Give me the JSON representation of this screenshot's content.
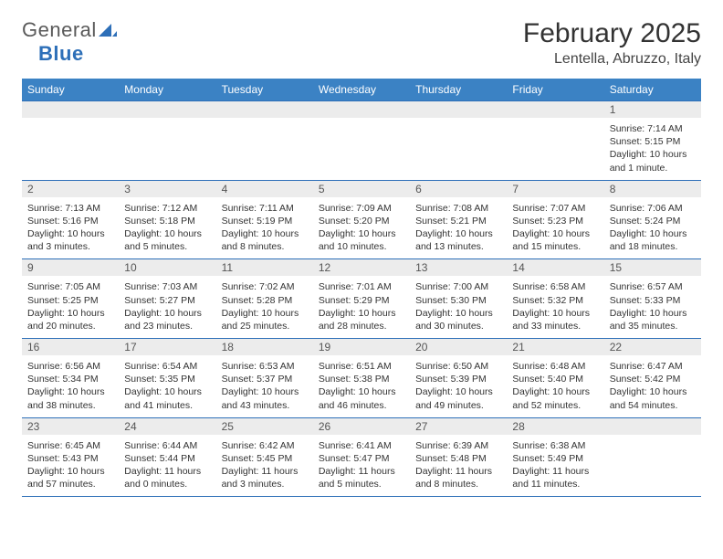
{
  "logo": {
    "part1": "General",
    "part2": "Blue"
  },
  "title": "February 2025",
  "location": "Lentella, Abruzzo, Italy",
  "colors": {
    "header_bg": "#3b82c4",
    "header_text": "#ffffff",
    "border": "#2d6fb8",
    "daynum_bg": "#ececec",
    "daynum_text": "#555555",
    "body_text": "#333333",
    "logo_gray": "#5a5a5a",
    "logo_blue": "#2d6fb8",
    "page_bg": "#ffffff"
  },
  "fonts": {
    "title_size_pt": 22,
    "location_size_pt": 12,
    "dayheader_size_pt": 9,
    "daynum_size_pt": 9,
    "details_size_pt": 8
  },
  "day_headers": [
    "Sunday",
    "Monday",
    "Tuesday",
    "Wednesday",
    "Thursday",
    "Friday",
    "Saturday"
  ],
  "weeks": [
    [
      {
        "n": "",
        "sr": "",
        "ss": "",
        "dl": ""
      },
      {
        "n": "",
        "sr": "",
        "ss": "",
        "dl": ""
      },
      {
        "n": "",
        "sr": "",
        "ss": "",
        "dl": ""
      },
      {
        "n": "",
        "sr": "",
        "ss": "",
        "dl": ""
      },
      {
        "n": "",
        "sr": "",
        "ss": "",
        "dl": ""
      },
      {
        "n": "",
        "sr": "",
        "ss": "",
        "dl": ""
      },
      {
        "n": "1",
        "sr": "Sunrise: 7:14 AM",
        "ss": "Sunset: 5:15 PM",
        "dl": "Daylight: 10 hours and 1 minute."
      }
    ],
    [
      {
        "n": "2",
        "sr": "Sunrise: 7:13 AM",
        "ss": "Sunset: 5:16 PM",
        "dl": "Daylight: 10 hours and 3 minutes."
      },
      {
        "n": "3",
        "sr": "Sunrise: 7:12 AM",
        "ss": "Sunset: 5:18 PM",
        "dl": "Daylight: 10 hours and 5 minutes."
      },
      {
        "n": "4",
        "sr": "Sunrise: 7:11 AM",
        "ss": "Sunset: 5:19 PM",
        "dl": "Daylight: 10 hours and 8 minutes."
      },
      {
        "n": "5",
        "sr": "Sunrise: 7:09 AM",
        "ss": "Sunset: 5:20 PM",
        "dl": "Daylight: 10 hours and 10 minutes."
      },
      {
        "n": "6",
        "sr": "Sunrise: 7:08 AM",
        "ss": "Sunset: 5:21 PM",
        "dl": "Daylight: 10 hours and 13 minutes."
      },
      {
        "n": "7",
        "sr": "Sunrise: 7:07 AM",
        "ss": "Sunset: 5:23 PM",
        "dl": "Daylight: 10 hours and 15 minutes."
      },
      {
        "n": "8",
        "sr": "Sunrise: 7:06 AM",
        "ss": "Sunset: 5:24 PM",
        "dl": "Daylight: 10 hours and 18 minutes."
      }
    ],
    [
      {
        "n": "9",
        "sr": "Sunrise: 7:05 AM",
        "ss": "Sunset: 5:25 PM",
        "dl": "Daylight: 10 hours and 20 minutes."
      },
      {
        "n": "10",
        "sr": "Sunrise: 7:03 AM",
        "ss": "Sunset: 5:27 PM",
        "dl": "Daylight: 10 hours and 23 minutes."
      },
      {
        "n": "11",
        "sr": "Sunrise: 7:02 AM",
        "ss": "Sunset: 5:28 PM",
        "dl": "Daylight: 10 hours and 25 minutes."
      },
      {
        "n": "12",
        "sr": "Sunrise: 7:01 AM",
        "ss": "Sunset: 5:29 PM",
        "dl": "Daylight: 10 hours and 28 minutes."
      },
      {
        "n": "13",
        "sr": "Sunrise: 7:00 AM",
        "ss": "Sunset: 5:30 PM",
        "dl": "Daylight: 10 hours and 30 minutes."
      },
      {
        "n": "14",
        "sr": "Sunrise: 6:58 AM",
        "ss": "Sunset: 5:32 PM",
        "dl": "Daylight: 10 hours and 33 minutes."
      },
      {
        "n": "15",
        "sr": "Sunrise: 6:57 AM",
        "ss": "Sunset: 5:33 PM",
        "dl": "Daylight: 10 hours and 35 minutes."
      }
    ],
    [
      {
        "n": "16",
        "sr": "Sunrise: 6:56 AM",
        "ss": "Sunset: 5:34 PM",
        "dl": "Daylight: 10 hours and 38 minutes."
      },
      {
        "n": "17",
        "sr": "Sunrise: 6:54 AM",
        "ss": "Sunset: 5:35 PM",
        "dl": "Daylight: 10 hours and 41 minutes."
      },
      {
        "n": "18",
        "sr": "Sunrise: 6:53 AM",
        "ss": "Sunset: 5:37 PM",
        "dl": "Daylight: 10 hours and 43 minutes."
      },
      {
        "n": "19",
        "sr": "Sunrise: 6:51 AM",
        "ss": "Sunset: 5:38 PM",
        "dl": "Daylight: 10 hours and 46 minutes."
      },
      {
        "n": "20",
        "sr": "Sunrise: 6:50 AM",
        "ss": "Sunset: 5:39 PM",
        "dl": "Daylight: 10 hours and 49 minutes."
      },
      {
        "n": "21",
        "sr": "Sunrise: 6:48 AM",
        "ss": "Sunset: 5:40 PM",
        "dl": "Daylight: 10 hours and 52 minutes."
      },
      {
        "n": "22",
        "sr": "Sunrise: 6:47 AM",
        "ss": "Sunset: 5:42 PM",
        "dl": "Daylight: 10 hours and 54 minutes."
      }
    ],
    [
      {
        "n": "23",
        "sr": "Sunrise: 6:45 AM",
        "ss": "Sunset: 5:43 PM",
        "dl": "Daylight: 10 hours and 57 minutes."
      },
      {
        "n": "24",
        "sr": "Sunrise: 6:44 AM",
        "ss": "Sunset: 5:44 PM",
        "dl": "Daylight: 11 hours and 0 minutes."
      },
      {
        "n": "25",
        "sr": "Sunrise: 6:42 AM",
        "ss": "Sunset: 5:45 PM",
        "dl": "Daylight: 11 hours and 3 minutes."
      },
      {
        "n": "26",
        "sr": "Sunrise: 6:41 AM",
        "ss": "Sunset: 5:47 PM",
        "dl": "Daylight: 11 hours and 5 minutes."
      },
      {
        "n": "27",
        "sr": "Sunrise: 6:39 AM",
        "ss": "Sunset: 5:48 PM",
        "dl": "Daylight: 11 hours and 8 minutes."
      },
      {
        "n": "28",
        "sr": "Sunrise: 6:38 AM",
        "ss": "Sunset: 5:49 PM",
        "dl": "Daylight: 11 hours and 11 minutes."
      },
      {
        "n": "",
        "sr": "",
        "ss": "",
        "dl": ""
      }
    ]
  ]
}
